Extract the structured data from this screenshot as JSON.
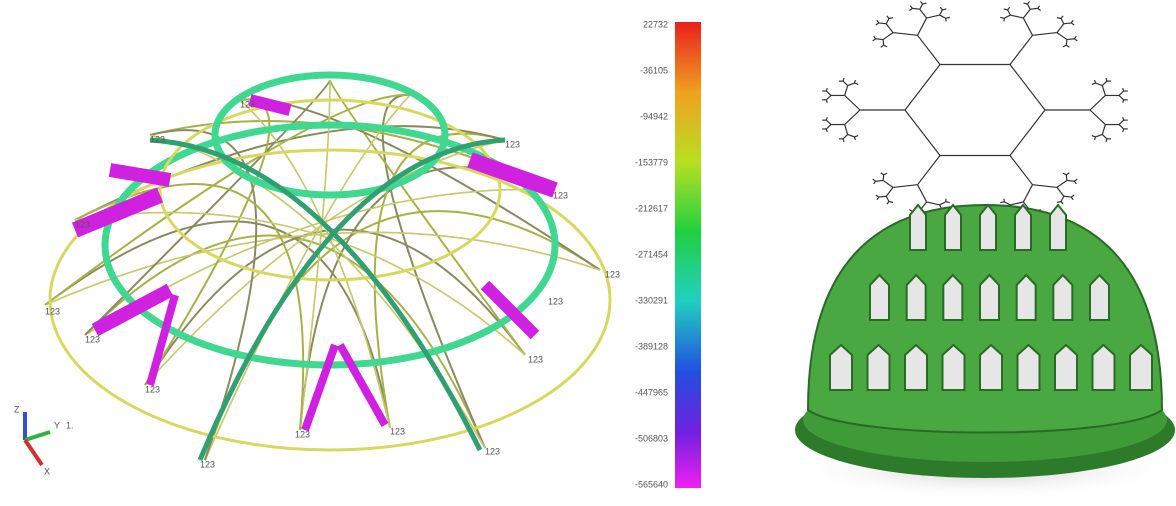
{
  "colorbar": {
    "ticks": [
      22732,
      -36105,
      -94942,
      -153779,
      -212617,
      -271454,
      -330291,
      -389128,
      -447965,
      -506803,
      -565640
    ]
  },
  "node_labels": [
    "123",
    "123",
    "123",
    "123",
    "123",
    "123",
    "123",
    "123",
    "123",
    "123",
    "123",
    "123",
    "123",
    "123",
    "123"
  ],
  "axes_triad": {
    "z": "Z",
    "y": "Y",
    "x": "X",
    "case": "1."
  }
}
